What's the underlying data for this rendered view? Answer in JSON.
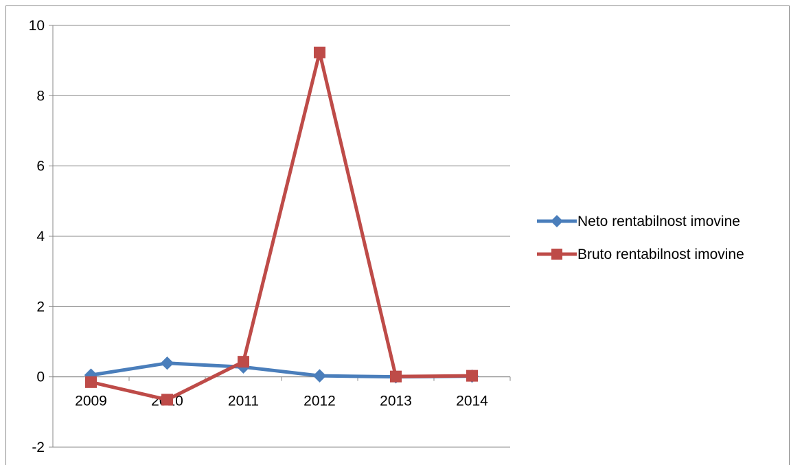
{
  "chart_data": {
    "type": "line",
    "title": "",
    "xlabel": "",
    "ylabel": "",
    "categories": [
      "2009",
      "2010",
      "2011",
      "2012",
      "2013",
      "2014"
    ],
    "ylim": [
      -2,
      10
    ],
    "yticks": [
      -2,
      0,
      2,
      4,
      6,
      8,
      10
    ],
    "ytick_labels": [
      "-2",
      "0",
      "2",
      "4",
      "6",
      "8",
      "10"
    ],
    "grid": true,
    "legend_position": "right",
    "series": [
      {
        "name": "Neto rentabilnost imovine",
        "values": [
          0.05,
          0.39,
          0.28,
          0.03,
          0.0,
          0.02
        ],
        "color": "#4A7EBB",
        "marker": "diamond"
      },
      {
        "name": "Bruto rentabilnost imovine",
        "values": [
          -0.15,
          -0.65,
          0.43,
          9.23,
          0.01,
          0.03
        ],
        "color": "#BE4B48",
        "marker": "square"
      }
    ]
  }
}
